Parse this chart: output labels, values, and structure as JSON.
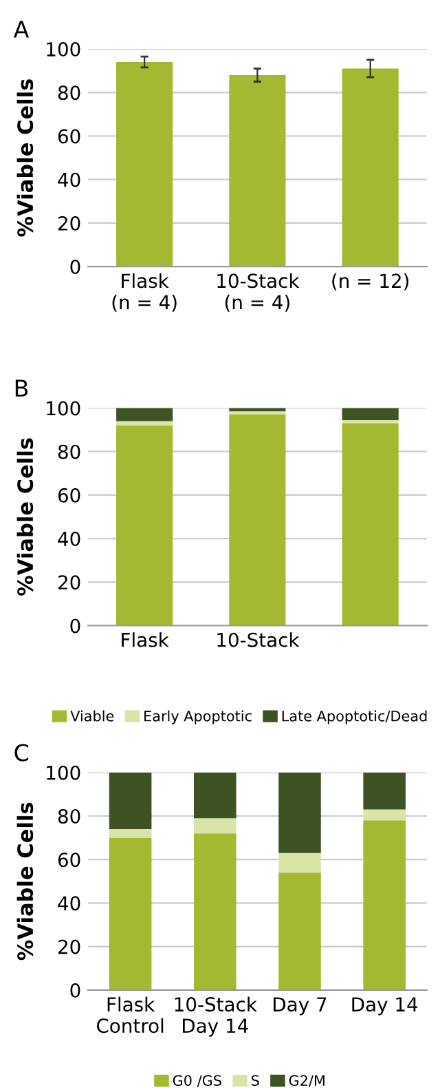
{
  "chart_data": [
    {
      "type": "bar",
      "title": "A",
      "ylabel": "%Viable Cells",
      "categories": [
        "Flask\n(n = 4)",
        "10-Stack\n(n = 4)",
        "(n = 12)"
      ],
      "values": [
        94,
        88,
        91
      ],
      "errors": [
        2.5,
        3,
        4
      ],
      "color": "#a5b832",
      "ylim": [
        0,
        100
      ],
      "yticks": [
        0,
        20,
        40,
        60,
        80,
        100
      ],
      "grid": "y"
    },
    {
      "type": "bar",
      "title": "B",
      "ylabel": "%Viable Cells",
      "categories": [
        "Flask",
        "10-Stack",
        null
      ],
      "stacked": true,
      "legend": "bottom",
      "ylim": [
        0,
        100
      ],
      "yticks": [
        0,
        20,
        40,
        60,
        80,
        100
      ],
      "grid": "y",
      "series": [
        {
          "name": "Viable",
          "color": "#a5b832",
          "values": [
            92,
            97,
            93
          ]
        },
        {
          "name": "Early Apoptotic",
          "color": "#d8e4a8",
          "values": [
            2,
            1.5,
            1.5
          ]
        },
        {
          "name": "Late Apoptotic/Dead",
          "color": "#3f5224",
          "values": [
            6,
            1.5,
            5.5
          ]
        }
      ]
    },
    {
      "type": "bar",
      "title": "C",
      "ylabel": "%Viable Cells",
      "categories": [
        "Flask\nControl",
        "10-Stack\nDay 14",
        "Day 7",
        "Day 14"
      ],
      "stacked": true,
      "legend": "bottom",
      "ylim": [
        0,
        100
      ],
      "yticks": [
        0,
        20,
        40,
        60,
        80,
        100
      ],
      "grid": "y",
      "series": [
        {
          "name": "G0 /GS",
          "color": "#a5b832",
          "values": [
            70,
            72,
            54,
            78
          ]
        },
        {
          "name": "S",
          "color": "#d8e4a8",
          "values": [
            4,
            7,
            9,
            5
          ]
        },
        {
          "name": "G2/M",
          "color": "#3f5224",
          "values": [
            26,
            21,
            37,
            17
          ]
        }
      ]
    }
  ]
}
